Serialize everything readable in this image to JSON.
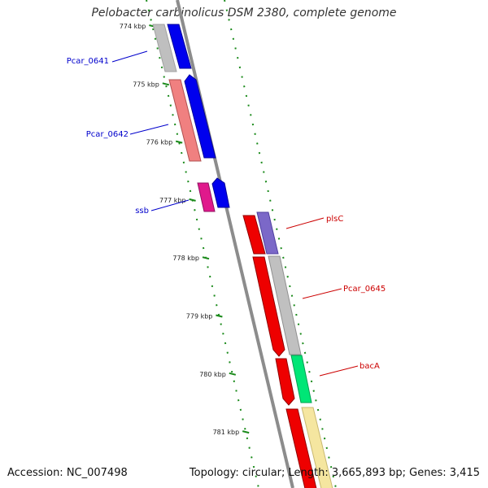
{
  "title": "Pelobacter carbinolicus DSM 2380, complete genome",
  "footer": {
    "accession": "Accession: NC_007498",
    "summary": "Topology: circular; Length: 3,665,893 bp; Genes: 3,415"
  },
  "colors": {
    "backbone": "#8c8c8c",
    "tick": "#1a8a1a",
    "label_left": "#0000cc",
    "label_right": "#cc0000"
  },
  "ticks": [
    {
      "kbp": 774,
      "label": "774 kbp"
    },
    {
      "kbp": 775,
      "label": "775 kbp"
    },
    {
      "kbp": 776,
      "label": "776 kbp"
    },
    {
      "kbp": 777,
      "label": "777 kbp"
    },
    {
      "kbp": 778,
      "label": "778 kbp"
    },
    {
      "kbp": 779,
      "label": "779 kbp"
    },
    {
      "kbp": 780,
      "label": "780 kbp"
    },
    {
      "kbp": 781,
      "label": "781 kbp"
    }
  ],
  "labels": {
    "Pcar_0641": "Pcar_0641",
    "Pcar_0642": "Pcar_0642",
    "ssb": "ssb",
    "plsC": "plsC",
    "Pcar_0645": "Pcar_0645",
    "bacA": "bacA"
  }
}
